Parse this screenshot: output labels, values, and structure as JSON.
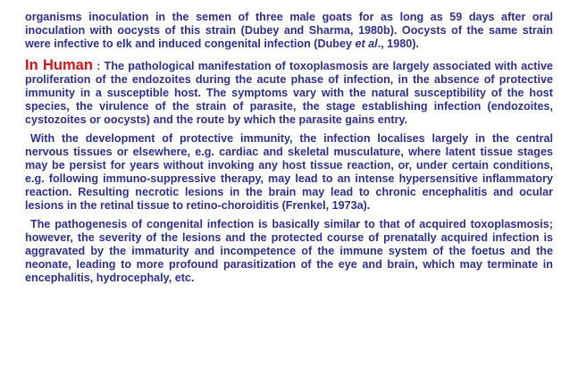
{
  "para1": {
    "text_a": "organisms inoculation in the semen of three male goats for as long as 59 days after oral inoculation with oocysts of this strain (Dubey and Sharma, 1980b). Oocysts of the same strain were infective to elk and induced congenital infection (Dubey ",
    "et_al": "et al",
    "text_b": "., 1980)."
  },
  "para2": {
    "heading": "In Human",
    "text": " : The pathological manifestation of toxoplasmosis are largely associated with active proliferation of the endozoites during the acute phase of infection, in the absence of protective immunity in a susceptible host. The symptoms vary with the natural susceptibility of the host species, the virulence of the strain of parasite, the stage establishing infection (endozoites, cystozoites or oocysts) and the route by which the parasite gains entry."
  },
  "para3": {
    "text": "With the development of protective immunity, the infection localises largely in the central nervous tissues or elsewhere, e.g. cardiac and skeletal musculature, where latent tissue stages may be persist for years without invoking any host tissue reaction, or, under certain conditions, e.g. following immuno-suppressive therapy, may lead to an intense hypersensitive inflammatory reaction. Resulting necrotic lesions in the brain may lead to chronic encephalitis and ocular lesions in the retinal tissue to retino-choroiditis (Frenkel, 1973a)."
  },
  "para4": {
    "text": "The pathogenesis of congenital infection is basically similar to that of acquired toxoplasmosis; however, the severity of the lesions and the protected course of prenatally acquired infection is aggravated by the immaturity and incompetence of the immune system of the foetus and the neonate, leading to more profound parasitization of the eye and brain, which may terminate in encephalitis, hydrocephaly, etc."
  },
  "colors": {
    "body_text": "#2e2e9a",
    "heading": "#e01010",
    "background": "#ffffff"
  }
}
